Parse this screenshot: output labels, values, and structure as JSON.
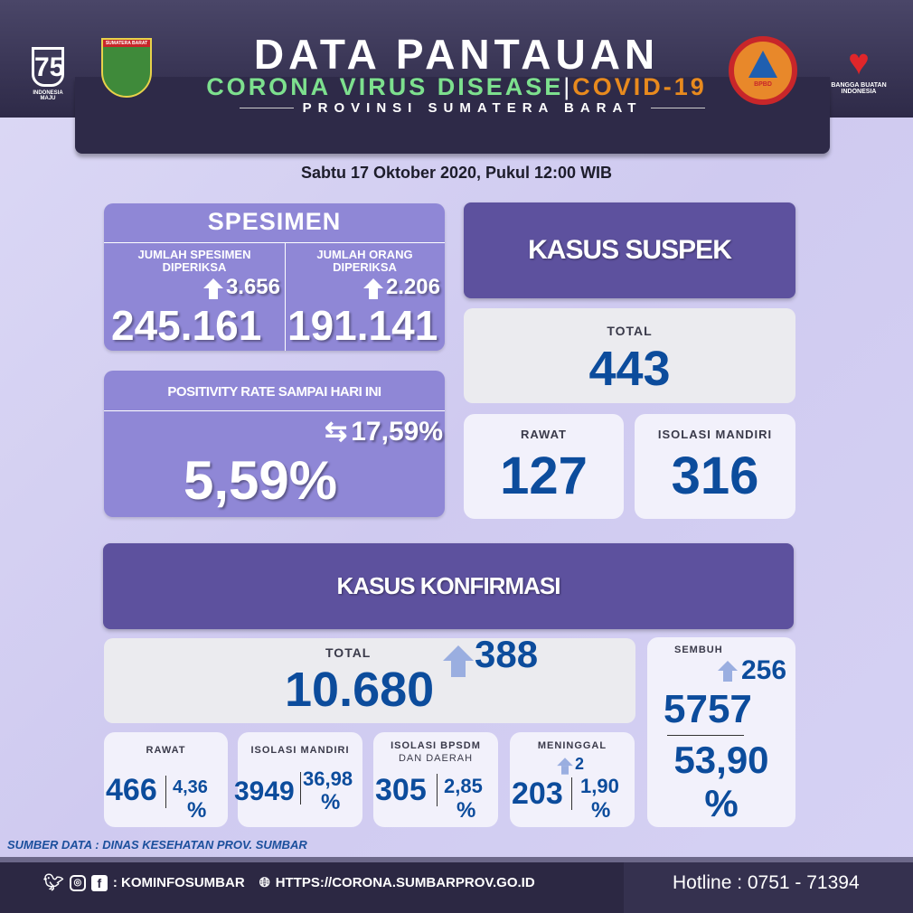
{
  "header": {
    "title": "DATA PANTAUAN",
    "subtitle_green": "CORONA VIRUS DISEASE",
    "subtitle_sep": "|",
    "subtitle_orange": "COVID-19",
    "province": "PROVINSI SUMATERA BARAT",
    "logos": {
      "ri75": "INDONESIA MAJU",
      "sumbar": "SUMATERA BARAT",
      "bpbd": "BPBD",
      "bangga": "BANGGA BUATAN INDONESIA"
    }
  },
  "date": "Sabtu 17 Oktober 2020, Pukul 12:00 WIB",
  "spesimen": {
    "title": "SPESIMEN",
    "left": {
      "label": "JUMLAH SPESIMEN DIPERIKSA",
      "increase": "3.656",
      "value": "245.161"
    },
    "right": {
      "label": "JUMLAH ORANG DIPERIKSA",
      "increase": "2.206",
      "value": "191.141"
    }
  },
  "positivity": {
    "title": "POSITIVITY RATE SAMPAI HARI INI",
    "compare": "17,59%",
    "value": "5,59%"
  },
  "suspek": {
    "title": "KASUS SUSPEK",
    "total_label": "TOTAL",
    "total": "443",
    "rawat_label": "RAWAT",
    "rawat": "127",
    "isolasi_label": "ISOLASI MANDIRI",
    "isolasi": "316"
  },
  "konfirmasi": {
    "title": "KASUS KONFIRMASI",
    "total_label": "TOTAL",
    "total": "10.680",
    "increase": "388",
    "sembuh": {
      "label": "SEMBUH",
      "increase": "256",
      "value": "5757",
      "percent": "53,90",
      "pct_sign": "%"
    },
    "cards": [
      {
        "label": "RAWAT",
        "sub": "",
        "value": "466",
        "percent": "4,36",
        "pct_sign": "%",
        "increase": ""
      },
      {
        "label": "ISOLASI MANDIRI",
        "sub": "",
        "value": "3949",
        "percent": "36,98",
        "pct_sign": "%",
        "increase": ""
      },
      {
        "label": "ISOLASI BPSDM",
        "sub": "DAN DAERAH",
        "value": "305",
        "percent": "2,85",
        "pct_sign": "%",
        "increase": ""
      },
      {
        "label": "MENINGGAL",
        "sub": "",
        "value": "203",
        "percent": "1,90",
        "pct_sign": "%",
        "increase": "2"
      }
    ]
  },
  "source": "SUMBER DATA : DINAS KESEHATAN PROV. SUMBAR",
  "footer": {
    "social": ": KOMINFOSUMBAR",
    "website": "HTTPS://CORONA.SUMBARPROV.GO.ID",
    "hotline": "Hotline : 0751 - 71394"
  },
  "colors": {
    "header": "#2e2a48",
    "purple": "#8f87d6",
    "dark_purple": "#5d519e",
    "number_blue": "#0c4c9c",
    "green": "#7de08e",
    "orange": "#e88a1e"
  }
}
